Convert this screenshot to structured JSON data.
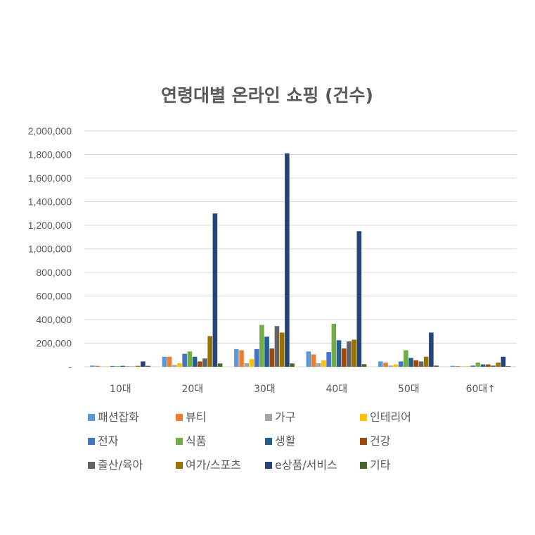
{
  "chart_data": {
    "type": "bar",
    "title": "연령대별 온라인 쇼핑 (건수)",
    "xlabel": "",
    "ylabel": "",
    "ylim": [
      0,
      2000000
    ],
    "yticks": [
      0,
      200000,
      400000,
      600000,
      800000,
      1000000,
      1200000,
      1400000,
      1600000,
      1800000,
      2000000
    ],
    "ytick_labels": [
      "-",
      "200,000",
      "400,000",
      "600,000",
      "800,000",
      "1,000,000",
      "1,200,000",
      "1,400,000",
      "1,600,000",
      "1,800,000",
      "2,000,000"
    ],
    "grid": true,
    "legend_position": "bottom",
    "categories": [
      "10대",
      "20대",
      "30대",
      "40대",
      "50대",
      "60대↑"
    ],
    "series": [
      {
        "name": "패션잡화",
        "color": "#5b9bd5",
        "values": [
          10000,
          85000,
          150000,
          130000,
          45000,
          8000
        ]
      },
      {
        "name": "뷰티",
        "color": "#ed7d31",
        "values": [
          8000,
          85000,
          140000,
          105000,
          35000,
          6000
        ]
      },
      {
        "name": "가구",
        "color": "#a5a5a5",
        "values": [
          2000,
          15000,
          30000,
          30000,
          10000,
          3000
        ]
      },
      {
        "name": "인테리어",
        "color": "#ffc000",
        "values": [
          3000,
          30000,
          65000,
          55000,
          20000,
          5000
        ]
      },
      {
        "name": "전자",
        "color": "#4472c4",
        "values": [
          7000,
          110000,
          150000,
          125000,
          45000,
          10000
        ]
      },
      {
        "name": "식품",
        "color": "#70ad47",
        "values": [
          5000,
          130000,
          355000,
          365000,
          140000,
          35000
        ]
      },
      {
        "name": "생활",
        "color": "#255e91",
        "values": [
          8000,
          85000,
          255000,
          225000,
          75000,
          20000
        ]
      },
      {
        "name": "건강",
        "color": "#9e480e",
        "values": [
          3000,
          45000,
          155000,
          155000,
          55000,
          20000
        ]
      },
      {
        "name": "출산/육아",
        "color": "#636363",
        "values": [
          2000,
          70000,
          345000,
          215000,
          45000,
          10000
        ]
      },
      {
        "name": "여가/스포츠",
        "color": "#997300",
        "values": [
          8000,
          260000,
          290000,
          230000,
          85000,
          35000
        ]
      },
      {
        "name": "e상품/서비스",
        "color": "#264478",
        "values": [
          45000,
          1300000,
          1810000,
          1150000,
          290000,
          85000
        ]
      },
      {
        "name": "기타",
        "color": "#43682b",
        "values": [
          8000,
          28000,
          28000,
          22000,
          10000,
          5000
        ]
      }
    ]
  }
}
